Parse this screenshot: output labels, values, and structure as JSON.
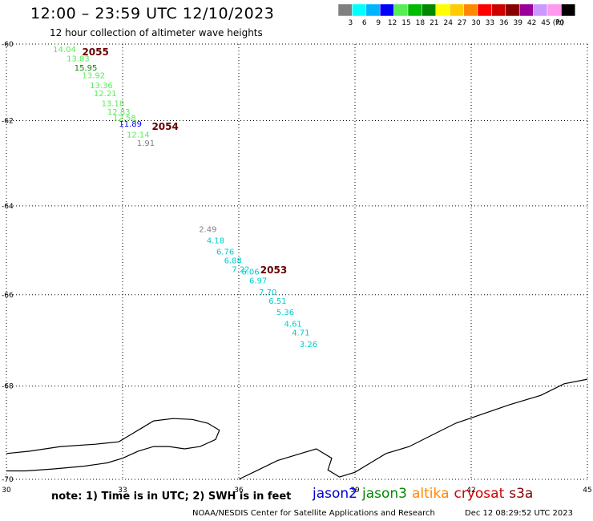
{
  "header": {
    "title": "12:00 – 23:59 UTC 12/10/2023",
    "subtitle": "12 hour collection of altimeter wave heights"
  },
  "legend": {
    "units": "(ft)",
    "bins": [
      {
        "label": "3",
        "color": "#808080"
      },
      {
        "label": "6",
        "color": "#00ffff"
      },
      {
        "label": "9",
        "color": "#00b4ff"
      },
      {
        "label": "12",
        "color": "#0000ff"
      },
      {
        "label": "15",
        "color": "#55ee55"
      },
      {
        "label": "18",
        "color": "#00bb00"
      },
      {
        "label": "21",
        "color": "#008800"
      },
      {
        "label": "24",
        "color": "#ffff00"
      },
      {
        "label": "27",
        "color": "#ffcc00"
      },
      {
        "label": "30",
        "color": "#ff8800"
      },
      {
        "label": "33",
        "color": "#ff0000"
      },
      {
        "label": "36",
        "color": "#cc0000"
      },
      {
        "label": "39",
        "color": "#880000"
      },
      {
        "label": "42",
        "color": "#990099"
      },
      {
        "label": "45",
        "color": "#cc99ff"
      },
      {
        "label": "70",
        "color": "#ff99ee"
      },
      {
        "label": "",
        "color": "#000000"
      }
    ]
  },
  "map": {
    "lon_range": [
      30,
      45
    ],
    "lat_range": [
      -70,
      -60
    ],
    "x_ticks": [
      "30",
      "33",
      "36",
      "39",
      "42",
      "45"
    ],
    "y_ticks": [
      "-60",
      "-62",
      "-64",
      "-66",
      "-68",
      "-70"
    ],
    "grid": "dotted"
  },
  "tracks": [
    {
      "time_label": "2055",
      "label_color": "#660000",
      "label_pos": {
        "lon": 32.3,
        "lat": -60.25
      },
      "points": [
        {
          "text": "14.04",
          "color": "#55ee55",
          "lon": 31.5,
          "lat": -60.25
        },
        {
          "text": "13.83",
          "color": "#55ee55",
          "lon": 31.85,
          "lat": -60.5
        },
        {
          "text": "15.95",
          "color": "#008800",
          "lon": 32.05,
          "lat": -60.75
        },
        {
          "text": "13.92",
          "color": "#55ee55",
          "lon": 32.25,
          "lat": -60.95
        },
        {
          "text": "13.36",
          "color": "#55ee55",
          "lon": 32.45,
          "lat": -61.2
        },
        {
          "text": "12.21",
          "color": "#55ee55",
          "lon": 32.55,
          "lat": -61.4
        },
        {
          "text": "13.18",
          "color": "#55ee55",
          "lon": 32.75,
          "lat": -61.65
        },
        {
          "text": "12.83",
          "color": "#55ee55",
          "lon": 32.9,
          "lat": -61.85
        },
        {
          "text": "12.58",
          "color": "#55ee55",
          "lon": 33.05,
          "lat": -62.0
        },
        {
          "text": "11.89",
          "color": "#0000ff",
          "lon": 33.2,
          "lat": -62.15
        }
      ]
    },
    {
      "time_label": "2054",
      "label_color": "#660000",
      "label_pos": {
        "lon": 34.1,
        "lat": -62.15
      },
      "points": [
        {
          "text": "12.14",
          "color": "#55ee55",
          "lon": 33.4,
          "lat": -62.4
        },
        {
          "text": "1.91",
          "color": "#808080",
          "lon": 33.6,
          "lat": -62.6
        }
      ]
    },
    {
      "time_label": "2053",
      "label_color": "#660000",
      "label_pos": {
        "lon": 36.9,
        "lat": -65.45
      },
      "points": [
        {
          "text": "2.49",
          "color": "#808080",
          "lon": 35.2,
          "lat": -64.6
        },
        {
          "text": "4.18",
          "color": "#00cccc",
          "lon": 35.4,
          "lat": -64.85
        },
        {
          "text": "6.76",
          "color": "#00cccc",
          "lon": 35.65,
          "lat": -65.1
        },
        {
          "text": "6.88",
          "color": "#00cccc",
          "lon": 35.85,
          "lat": -65.3
        },
        {
          "text": "7.22",
          "color": "#00cccc",
          "lon": 36.05,
          "lat": -65.5
        },
        {
          "text": "6.06",
          "color": "#00cccc",
          "lon": 36.3,
          "lat": -65.55
        },
        {
          "text": "6.97",
          "color": "#00cccc",
          "lon": 36.5,
          "lat": -65.75
        },
        {
          "text": "7.70",
          "color": "#00cccc",
          "lon": 36.75,
          "lat": -66.0
        },
        {
          "text": "6.51",
          "color": "#00cccc",
          "lon": 37.0,
          "lat": -66.2
        },
        {
          "text": "5.36",
          "color": "#00cccc",
          "lon": 37.2,
          "lat": -66.45
        },
        {
          "text": "4.61",
          "color": "#00cccc",
          "lon": 37.4,
          "lat": -66.7
        },
        {
          "text": "4.71",
          "color": "#00cccc",
          "lon": 37.6,
          "lat": -66.9
        },
        {
          "text": "3.26",
          "color": "#00cccc",
          "lon": 37.8,
          "lat": -67.15
        }
      ]
    }
  ],
  "coastline": [
    [
      30.0,
      -69.45
    ],
    [
      30.6,
      -69.4
    ],
    [
      31.4,
      -69.3
    ],
    [
      32.3,
      -69.25
    ],
    [
      32.9,
      -69.2
    ],
    [
      33.2,
      -69.05
    ],
    [
      33.5,
      -68.9
    ],
    [
      33.8,
      -68.75
    ],
    [
      34.3,
      -68.7
    ],
    [
      34.8,
      -68.72
    ],
    [
      35.2,
      -68.8
    ],
    [
      35.5,
      -68.95
    ],
    [
      35.4,
      -69.15
    ],
    [
      35.0,
      -69.3
    ],
    [
      34.6,
      -69.35
    ],
    [
      34.2,
      -69.3
    ],
    [
      33.8,
      -69.3
    ],
    [
      33.4,
      -69.4
    ],
    [
      33.0,
      -69.55
    ],
    [
      32.6,
      -69.65
    ],
    [
      32.0,
      -69.72
    ],
    [
      31.2,
      -69.78
    ],
    [
      30.5,
      -69.82
    ],
    [
      30.0,
      -69.82
    ]
  ],
  "coastline_east": [
    [
      36.0,
      -70.0
    ],
    [
      36.5,
      -69.8
    ],
    [
      37.0,
      -69.6
    ],
    [
      37.6,
      -69.45
    ],
    [
      38.0,
      -69.35
    ],
    [
      38.4,
      -69.55
    ],
    [
      38.3,
      -69.8
    ],
    [
      38.6,
      -69.95
    ],
    [
      39.0,
      -69.85
    ],
    [
      39.4,
      -69.65
    ],
    [
      39.8,
      -69.45
    ],
    [
      40.4,
      -69.3
    ],
    [
      41.0,
      -69.05
    ],
    [
      41.6,
      -68.8
    ],
    [
      42.3,
      -68.6
    ],
    [
      43.0,
      -68.4
    ],
    [
      43.8,
      -68.2
    ],
    [
      44.4,
      -67.95
    ],
    [
      45.0,
      -67.85
    ]
  ],
  "footer": {
    "note": "note:  1) Time is in UTC;  2) SWH is in feet",
    "satellites": [
      {
        "name": "jason2",
        "color": "#0000cc"
      },
      {
        "name": "jason3",
        "color": "#008800"
      },
      {
        "name": "altika",
        "color": "#ff8800"
      },
      {
        "name": "cryosat",
        "color": "#cc0000"
      },
      {
        "name": "s3a",
        "color": "#880000"
      }
    ],
    "credit": "NOAA/NESDIS Center for Satellite Applications and Research",
    "timestamp": "Dec 12 08:29:52 UTC 2023"
  }
}
